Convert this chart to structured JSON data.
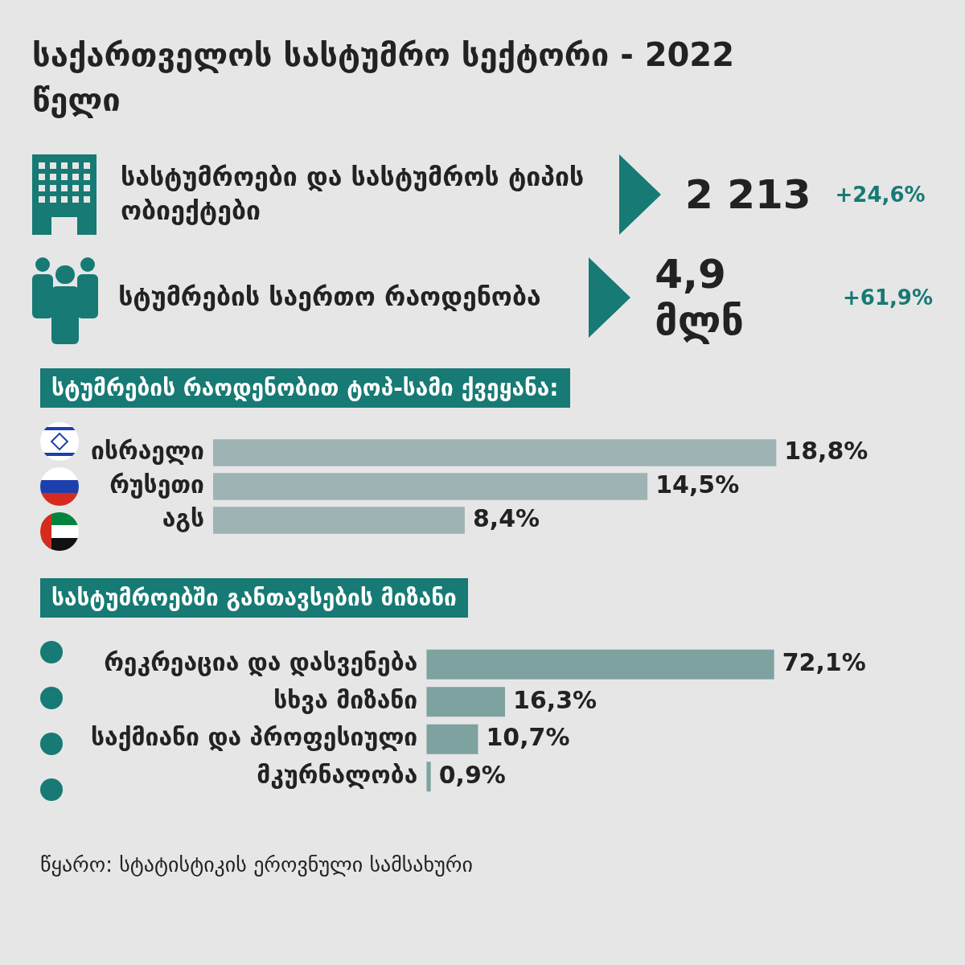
{
  "chart_data": [
    {
      "type": "other",
      "title": "საქართველოს სასტუმრო სექტორი - 2022 წელი",
      "annotations": [
        "სასტუმროები და სასტუმროს ტიპის ობიექტები",
        "2 213",
        "+24,6%",
        "სტუმრების საერთო რაოდენობა",
        "4,9 მლნ",
        "+61,9%"
      ]
    },
    {
      "type": "bar",
      "orientation": "horizontal",
      "title": "სტუმრების რაოდენობით ტოპ-სამი ქვეყანა:",
      "categories": [
        "ისრაელი",
        "რუსეთი",
        "აგს"
      ],
      "values": [
        18.8,
        14.5,
        8.4
      ],
      "value_labels": [
        "18,8%",
        "14,5%",
        "8,4%"
      ],
      "color": "#9db3b4"
    },
    {
      "type": "bar",
      "orientation": "horizontal",
      "title": "სასტუმროებში განთავსების მიზანი",
      "categories": [
        "რეკრეაცია და დასვენება",
        "სხვა მიზანი",
        "საქმიანი და პროფესიული",
        "მკურნალობა"
      ],
      "values": [
        72.1,
        16.3,
        10.7,
        0.9
      ],
      "value_labels": [
        "72,1%",
        "16,3%",
        "10,7%",
        "0,9%"
      ],
      "color": "#7ea29f",
      "annotations": [
        "წყარო: სტატისტიკის ეროვნული სამსახური"
      ]
    }
  ]
}
